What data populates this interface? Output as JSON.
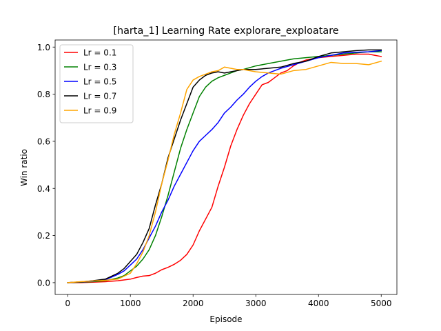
{
  "chart_data": {
    "type": "line",
    "title": "[harta_1] Learning Rate  explorare_exploatare",
    "xlabel": "Episode",
    "ylabel": "Win ratio",
    "xlim": [
      -200,
      5250
    ],
    "ylim": [
      -0.05,
      1.03
    ],
    "xticks": [
      0,
      1000,
      2000,
      3000,
      4000,
      5000
    ],
    "xtick_labels": [
      "0",
      "1000",
      "2000",
      "3000",
      "4000",
      "5000"
    ],
    "yticks": [
      0.0,
      0.2,
      0.4,
      0.6,
      0.8,
      1.0
    ],
    "ytick_labels": [
      "0.0",
      "0.2",
      "0.4",
      "0.6",
      "0.8",
      "1.0"
    ],
    "grid": false,
    "legend_position": "top-left",
    "series": [
      {
        "name": "Lr = 0.1",
        "color": "#ff0000",
        "x": [
          0,
          200,
          400,
          600,
          800,
          1000,
          1100,
          1200,
          1300,
          1400,
          1500,
          1600,
          1700,
          1800,
          1900,
          2000,
          2100,
          2200,
          2300,
          2400,
          2500,
          2600,
          2700,
          2800,
          2900,
          3000,
          3100,
          3200,
          3300,
          3400,
          3500,
          3600,
          3700,
          3800,
          3900,
          4000,
          4200,
          4400,
          4600,
          4800,
          4900,
          5000
        ],
        "y": [
          0.0,
          0.0,
          0.002,
          0.004,
          0.008,
          0.015,
          0.022,
          0.028,
          0.03,
          0.04,
          0.055,
          0.065,
          0.078,
          0.095,
          0.12,
          0.16,
          0.22,
          0.27,
          0.32,
          0.41,
          0.49,
          0.58,
          0.65,
          0.71,
          0.76,
          0.8,
          0.84,
          0.85,
          0.87,
          0.89,
          0.9,
          0.92,
          0.935,
          0.945,
          0.95,
          0.955,
          0.96,
          0.965,
          0.97,
          0.97,
          0.965,
          0.96
        ]
      },
      {
        "name": "Lr = 0.3",
        "color": "#008000",
        "x": [
          0,
          200,
          400,
          600,
          800,
          900,
          1000,
          1100,
          1200,
          1300,
          1400,
          1500,
          1600,
          1700,
          1800,
          1900,
          2000,
          2100,
          2200,
          2300,
          2400,
          2500,
          2600,
          2700,
          2800,
          3000,
          3200,
          3400,
          3600,
          3800,
          4000,
          4200,
          4400,
          4600,
          4800,
          5000
        ],
        "y": [
          0.0,
          0.002,
          0.004,
          0.008,
          0.02,
          0.03,
          0.05,
          0.07,
          0.1,
          0.14,
          0.2,
          0.28,
          0.37,
          0.47,
          0.57,
          0.65,
          0.72,
          0.79,
          0.83,
          0.855,
          0.87,
          0.88,
          0.89,
          0.9,
          0.905,
          0.92,
          0.93,
          0.94,
          0.95,
          0.955,
          0.96,
          0.965,
          0.97,
          0.975,
          0.98,
          0.98
        ]
      },
      {
        "name": "Lr = 0.5",
        "color": "#0000ff",
        "x": [
          0,
          200,
          400,
          600,
          800,
          900,
          1000,
          1100,
          1200,
          1300,
          1400,
          1500,
          1600,
          1700,
          1800,
          1900,
          2000,
          2100,
          2200,
          2300,
          2400,
          2500,
          2600,
          2700,
          2800,
          2900,
          3000,
          3100,
          3200,
          3300,
          3400,
          3600,
          3800,
          4000,
          4200,
          4400,
          4600,
          4800,
          5000
        ],
        "y": [
          0.0,
          0.003,
          0.006,
          0.012,
          0.035,
          0.05,
          0.075,
          0.1,
          0.14,
          0.19,
          0.24,
          0.3,
          0.35,
          0.41,
          0.46,
          0.51,
          0.56,
          0.6,
          0.625,
          0.65,
          0.68,
          0.72,
          0.745,
          0.775,
          0.8,
          0.83,
          0.855,
          0.875,
          0.89,
          0.9,
          0.91,
          0.925,
          0.94,
          0.955,
          0.965,
          0.975,
          0.978,
          0.98,
          0.985
        ]
      },
      {
        "name": "Lr = 0.7",
        "color": "#000000",
        "x": [
          0,
          200,
          400,
          600,
          800,
          900,
          1000,
          1100,
          1200,
          1300,
          1400,
          1500,
          1600,
          1700,
          1800,
          1900,
          2000,
          2100,
          2200,
          2300,
          2400,
          2500,
          2600,
          2700,
          2800,
          3000,
          3200,
          3400,
          3600,
          3800,
          4000,
          4200,
          4400,
          4600,
          4800,
          5000
        ],
        "y": [
          0.0,
          0.003,
          0.008,
          0.015,
          0.04,
          0.06,
          0.09,
          0.12,
          0.17,
          0.23,
          0.33,
          0.42,
          0.53,
          0.61,
          0.69,
          0.76,
          0.83,
          0.86,
          0.88,
          0.89,
          0.895,
          0.89,
          0.895,
          0.9,
          0.905,
          0.905,
          0.91,
          0.915,
          0.93,
          0.94,
          0.96,
          0.975,
          0.98,
          0.985,
          0.988,
          0.988
        ]
      },
      {
        "name": "Lr = 0.9",
        "color": "#ffa500",
        "x": [
          0,
          200,
          400,
          600,
          800,
          1000,
          1100,
          1200,
          1300,
          1400,
          1500,
          1600,
          1700,
          1800,
          1900,
          2000,
          2100,
          2200,
          2300,
          2400,
          2500,
          2600,
          2700,
          2800,
          3000,
          3200,
          3400,
          3600,
          3800,
          4000,
          4200,
          4400,
          4600,
          4800,
          5000
        ],
        "y": [
          0.0,
          0.004,
          0.007,
          0.01,
          0.015,
          0.04,
          0.08,
          0.13,
          0.2,
          0.3,
          0.42,
          0.52,
          0.63,
          0.72,
          0.82,
          0.86,
          0.875,
          0.885,
          0.895,
          0.9,
          0.915,
          0.91,
          0.905,
          0.905,
          0.895,
          0.89,
          0.885,
          0.9,
          0.905,
          0.92,
          0.935,
          0.93,
          0.93,
          0.925,
          0.94
        ]
      }
    ]
  }
}
